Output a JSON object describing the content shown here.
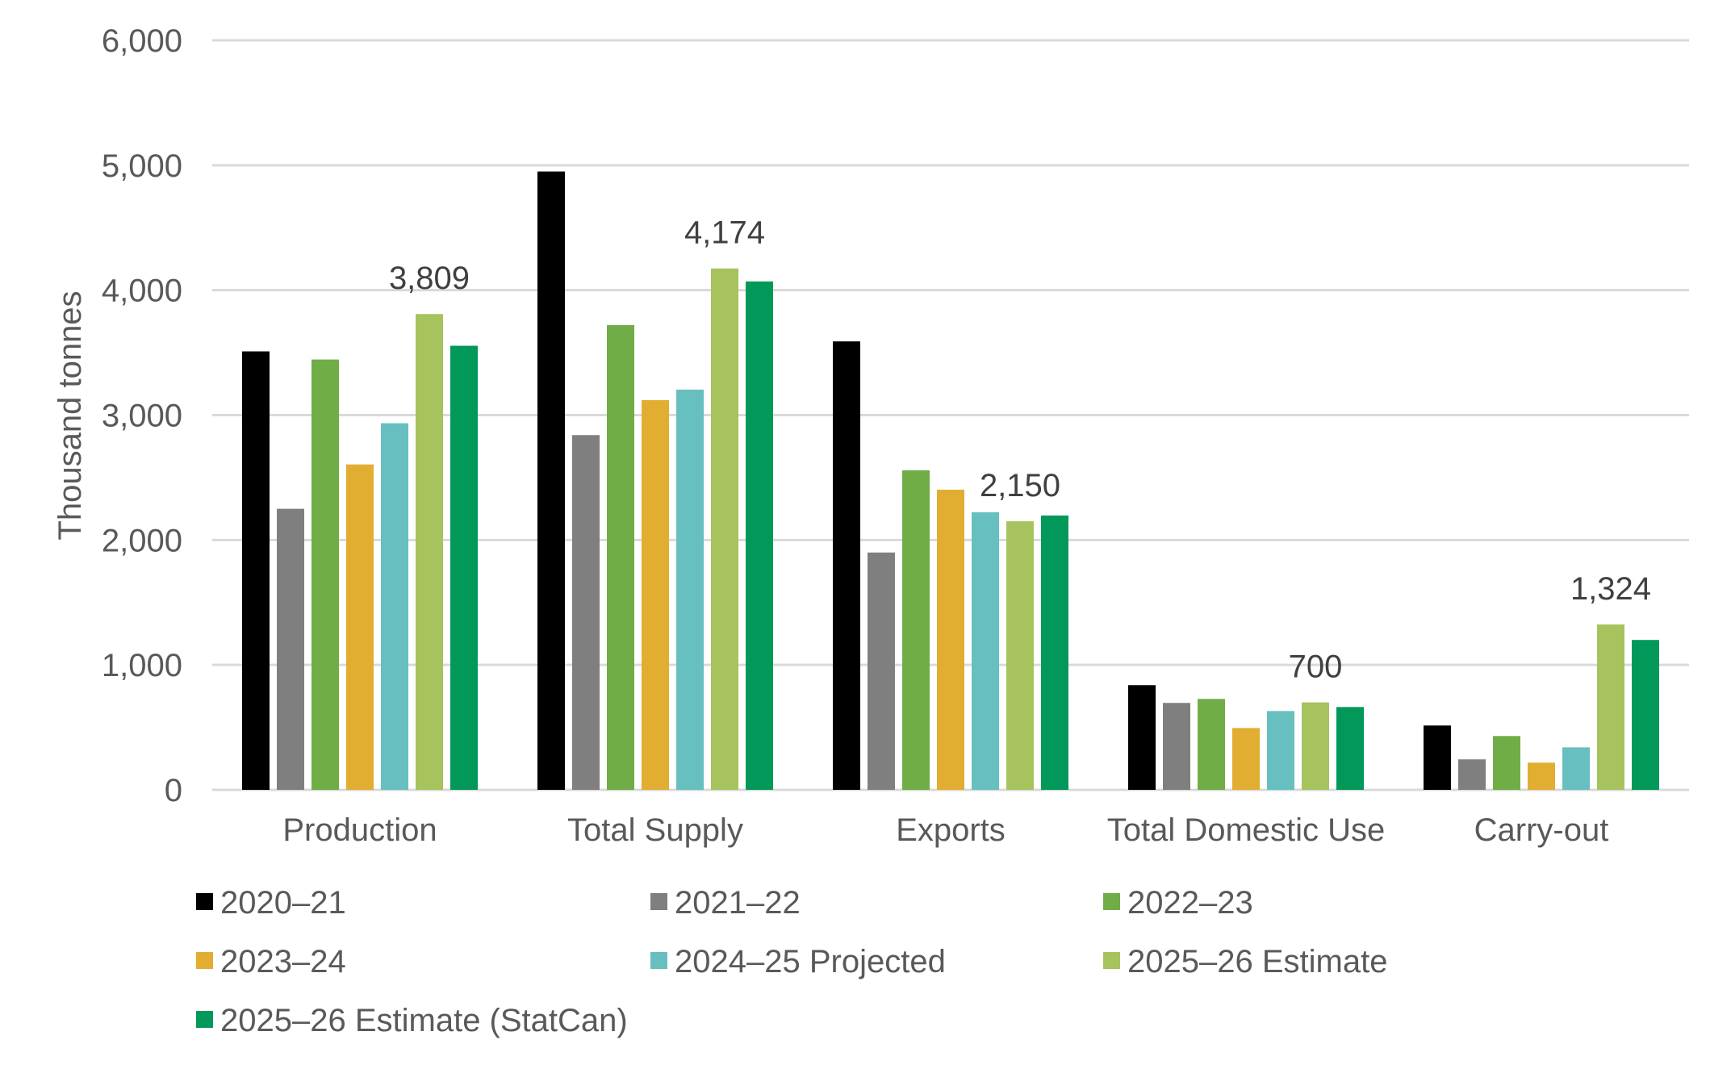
{
  "chart_data": {
    "type": "bar",
    "title": "",
    "xlabel": "",
    "ylabel": "Thousand tonnes",
    "ylim": [
      0,
      6000
    ],
    "yticks": [
      0,
      1000,
      2000,
      3000,
      4000,
      5000,
      6000
    ],
    "ytick_labels": [
      "0",
      "1,000",
      "2,000",
      "3,000",
      "4,000",
      "5,000",
      "6,000"
    ],
    "grid": true,
    "legend_position": "bottom",
    "categories": [
      "Production",
      "Total Supply",
      "Exports",
      "Total Domestic Use",
      "Carry-out"
    ],
    "series": [
      {
        "name": "2020–21",
        "color": "#000000",
        "values": [
          3510,
          4950,
          3590,
          838,
          515
        ]
      },
      {
        "name": "2021–22",
        "color": "#7f7f7f",
        "values": [
          2250,
          2840,
          1900,
          696,
          244
        ]
      },
      {
        "name": "2022–23",
        "color": "#70ad47",
        "values": [
          3445,
          3720,
          2558,
          728,
          431
        ]
      },
      {
        "name": "2023–24",
        "color": "#e2ae31",
        "values": [
          2605,
          3120,
          2403,
          495,
          218
        ]
      },
      {
        "name": "2024–25 Projected",
        "color": "#68bfbf",
        "values": [
          2935,
          3204,
          2222,
          631,
          340
        ]
      },
      {
        "name": "2025–26 Estimate",
        "color": "#a7c35e",
        "values": [
          3809,
          4174,
          2150,
          700,
          1324
        ]
      },
      {
        "name": "2025–26 Estimate (StatCan)",
        "color": "#02985a",
        "values": [
          3555,
          4070,
          2196,
          663,
          1200
        ]
      }
    ],
    "data_labels": [
      {
        "series_index": 5,
        "category_index": 0,
        "text": "3,809"
      },
      {
        "series_index": 5,
        "category_index": 1,
        "text": "4,174"
      },
      {
        "series_index": 5,
        "category_index": 2,
        "text": "2,150"
      },
      {
        "series_index": 5,
        "category_index": 3,
        "text": "700"
      },
      {
        "series_index": 5,
        "category_index": 4,
        "text": "1,324"
      }
    ]
  }
}
